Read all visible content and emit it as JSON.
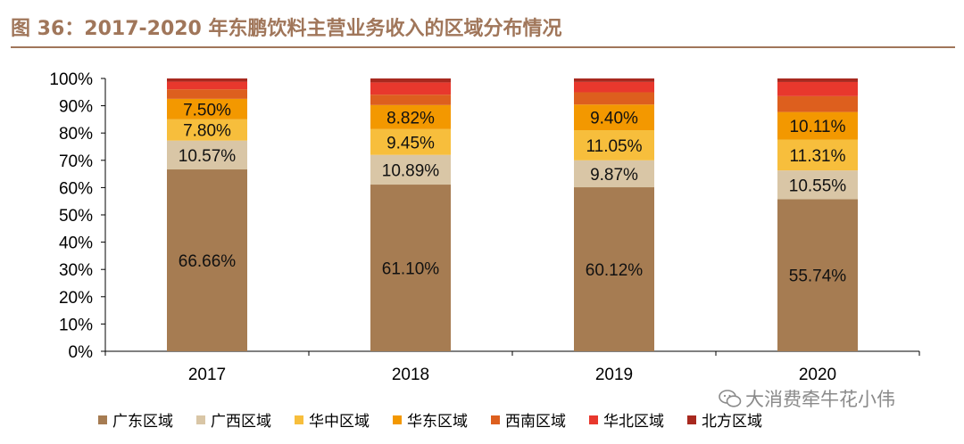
{
  "page": {
    "title": "图 36：2017-2020 年东鹏饮料主营业务收入的区域分布情况",
    "watermark": "大消费牵牛花小伟"
  },
  "chart_data": {
    "type": "bar",
    "stacked": true,
    "title": "图 36：2017-2020 年东鹏饮料主营业务收入的区域分布情况",
    "xlabel": "",
    "ylabel": "",
    "ylim": [
      0,
      100
    ],
    "yticks": [
      "0%",
      "10%",
      "20%",
      "30%",
      "40%",
      "50%",
      "60%",
      "70%",
      "80%",
      "90%",
      "100%"
    ],
    "categories": [
      "2017",
      "2018",
      "2019",
      "2020"
    ],
    "legend_position": "bottom",
    "series": [
      {
        "name": "广东区域",
        "color": "#a67c52",
        "values": [
          66.66,
          61.1,
          60.12,
          55.74
        ],
        "labels": [
          "66.66%",
          "61.10%",
          "60.12%",
          "55.74%"
        ]
      },
      {
        "name": "广西区域",
        "color": "#d9c6a6",
        "values": [
          10.57,
          10.89,
          9.87,
          10.55
        ],
        "labels": [
          "10.57%",
          "10.89%",
          "9.87%",
          "10.55%"
        ]
      },
      {
        "name": "华中区域",
        "color": "#f7be3c",
        "values": [
          7.8,
          9.45,
          11.05,
          11.31
        ],
        "labels": [
          "7.80%",
          "9.45%",
          "11.05%",
          "11.31%"
        ]
      },
      {
        "name": "华东区域",
        "color": "#f39800",
        "values": [
          7.5,
          8.82,
          9.4,
          10.11
        ],
        "labels": [
          "7.50%",
          "8.82%",
          "9.40%",
          "10.11%"
        ]
      },
      {
        "name": "西南区域",
        "color": "#dd5f1e",
        "values": [
          3.5,
          3.8,
          4.5,
          5.8
        ],
        "labels": null
      },
      {
        "name": "华北区域",
        "color": "#e8382d",
        "values": [
          2.8,
          4.5,
          3.8,
          5.2
        ],
        "labels": null
      },
      {
        "name": "北方区域",
        "color": "#a8291f",
        "values": [
          1.17,
          1.44,
          1.26,
          1.29
        ],
        "labels": null
      }
    ]
  }
}
